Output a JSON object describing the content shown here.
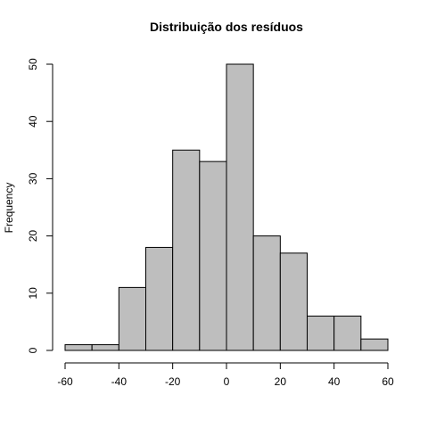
{
  "chart_data": {
    "type": "bar",
    "title": "Distribuição dos resíduos",
    "xlabel": "",
    "ylabel": "Frequency",
    "bins": [
      {
        "from": -60,
        "to": -50,
        "count": 1
      },
      {
        "from": -50,
        "to": -40,
        "count": 1
      },
      {
        "from": -40,
        "to": -30,
        "count": 11
      },
      {
        "from": -30,
        "to": -20,
        "count": 18
      },
      {
        "from": -20,
        "to": -10,
        "count": 35
      },
      {
        "from": -10,
        "to": 0,
        "count": 33
      },
      {
        "from": 0,
        "to": 10,
        "count": 50
      },
      {
        "from": 10,
        "to": 20,
        "count": 20
      },
      {
        "from": 20,
        "to": 30,
        "count": 17
      },
      {
        "from": 30,
        "to": 40,
        "count": 6
      },
      {
        "from": 40,
        "to": 50,
        "count": 6
      },
      {
        "from": 50,
        "to": 60,
        "count": 2
      }
    ],
    "xlim": [
      -60,
      60
    ],
    "ylim": [
      0,
      50
    ],
    "xticks": [
      -60,
      -40,
      -20,
      0,
      20,
      40,
      60
    ],
    "yticks": [
      0,
      10,
      20,
      30,
      40,
      50
    ],
    "bar_color": "#bebebe",
    "grid": false
  }
}
